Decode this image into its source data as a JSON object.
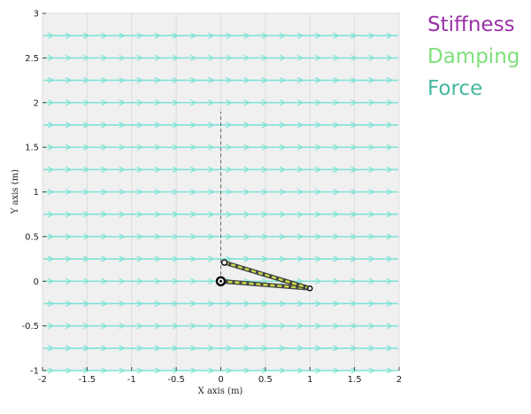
{
  "chart_data": {
    "type": "scatter",
    "xlabel": "X axis (m)",
    "ylabel": "Y axis (m)",
    "xlim": [
      -2,
      2
    ],
    "ylim": [
      -1,
      3
    ],
    "x_ticks": [
      "-2",
      "-1.5",
      "-1",
      "-0.5",
      "0",
      "0.5",
      "1",
      "1.5",
      "2"
    ],
    "y_ticks": [
      "-1",
      "-0.5",
      "0",
      "0.5",
      "1",
      "1.5",
      "2",
      "2.5",
      "3"
    ],
    "grid": true,
    "field": {
      "name": "Force",
      "color": "#7fe3d6",
      "direction": "+x",
      "rows_y": [
        -1,
        -0.75,
        -0.5,
        -0.25,
        0,
        0.25,
        0.5,
        0.75,
        1,
        1.25,
        1.5,
        1.75,
        2,
        2.25,
        2.5,
        2.75
      ]
    },
    "arm": {
      "base": [
        0,
        0
      ],
      "elbow": [
        1,
        -0.08
      ],
      "end_effector": [
        0.04,
        0.21
      ],
      "link_color": "#c8d84a"
    },
    "target_line": {
      "x": 0,
      "y_from": 0,
      "y_to": 1.9
    }
  },
  "legend": [
    {
      "label": "Stiffness",
      "color": "#9b30a8"
    },
    {
      "label": "Damping",
      "color": "#7ee07a"
    },
    {
      "label": "Force",
      "color": "#45b8a0"
    }
  ]
}
